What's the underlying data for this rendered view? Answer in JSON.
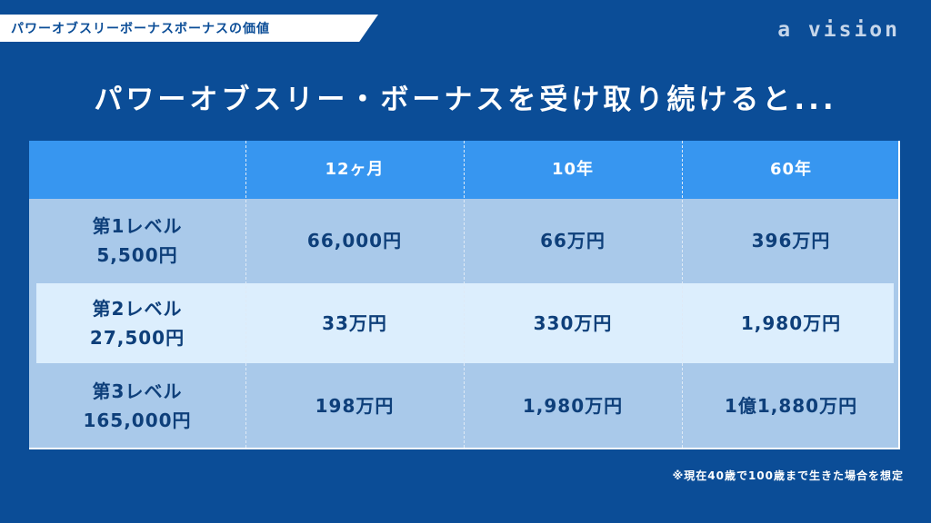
{
  "header": {
    "tag": "パワーオブスリーボーナスボーナスの価値",
    "brand": "a vision"
  },
  "headline": "パワーオブスリー・ボーナスを受け取り続けると...",
  "table": {
    "columns": [
      "12ヶ月",
      "10年",
      "60年"
    ],
    "rows": [
      {
        "label1": "第1レベル",
        "label2": "5,500円",
        "values": [
          "66,000円",
          "66万円",
          "396万円"
        ]
      },
      {
        "label1": "第2レベル",
        "label2": "27,500円",
        "values": [
          "33万円",
          "330万円",
          "1,980万円"
        ]
      },
      {
        "label1": "第3レベル",
        "label2": "165,000円",
        "values": [
          "198万円",
          "1,980万円",
          "1億1,880万円"
        ]
      }
    ]
  },
  "footnote": "※現在40歳で100歳まで生きた場合を想定",
  "colors": {
    "background": "#0b4d97",
    "header_row": "#3796f0",
    "row_light": "#dceefd",
    "row_mid": "#a9c9ea",
    "text_dark": "#0e3f7a"
  }
}
